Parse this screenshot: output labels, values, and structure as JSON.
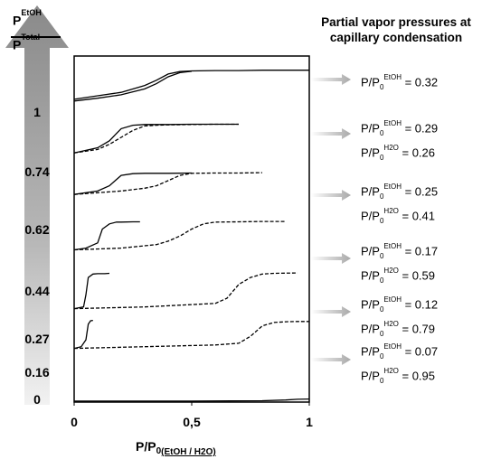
{
  "arrow": {
    "num_base": "P",
    "num_super": "EtOH",
    "den_base": "P",
    "den_super": "Total"
  },
  "side_labels": [
    "1",
    "0.74",
    "0.62",
    "0.44",
    "0.27",
    "0.16",
    "0"
  ],
  "legend_title": [
    "Partial vapor pressures at",
    "capillary condensation"
  ],
  "annotations": [
    {
      "lines": [
        {
          "prefix": "P/P",
          "sub": "0",
          "sup": "EtOH",
          "value": " = 0.32"
        }
      ]
    },
    {
      "lines": [
        {
          "prefix": "P/P",
          "sub": "0",
          "sup": "EtOH",
          "value": " = 0.29"
        },
        {
          "prefix": "P/P",
          "sub": "0",
          "sup": "H2O",
          "value": " = 0.26"
        }
      ]
    },
    {
      "lines": [
        {
          "prefix": "P/P",
          "sub": "0",
          "sup": "EtOH",
          "value": " = 0.25"
        },
        {
          "prefix": "P/P",
          "sub": "0",
          "sup": "H2O",
          "value": " = 0.41"
        }
      ]
    },
    {
      "lines": [
        {
          "prefix": "P/P",
          "sub": "0",
          "sup": "EtOH",
          "value": " = 0.17"
        },
        {
          "prefix": "P/P",
          "sub": "0",
          "sup": "H2O",
          "value": " = 0.59"
        }
      ]
    },
    {
      "lines": [
        {
          "prefix": "P/P",
          "sub": "0",
          "sup": "EtOH",
          "value": " = 0.12"
        },
        {
          "prefix": "P/P",
          "sub": "0",
          "sup": "H2O",
          "value": " = 0.79"
        }
      ]
    },
    {
      "lines": [
        {
          "prefix": "P/P",
          "sub": "0",
          "sup": "EtOH",
          "value": " = 0.07"
        },
        {
          "prefix": "P/P",
          "sub": "0",
          "sup": "H2O",
          "value": " = 0.95"
        }
      ]
    }
  ],
  "chart_data": {
    "type": "line",
    "title": "",
    "xlabel": "P/P0(EtOH / H2O)",
    "xlabel_base": "P/P",
    "xlabel_sub": "0",
    "xlabel_sub2": "(EtOH / H2O)",
    "ylabel": "",
    "xlim": [
      0,
      1
    ],
    "ylim": [
      0,
      1
    ],
    "xticks": [
      0,
      0.5,
      1
    ],
    "xtick_labels": [
      "0",
      "0,5",
      "1"
    ],
    "grid": false,
    "series": [
      {
        "ratio": "1",
        "style": "solid",
        "x": [
          0,
          0.1,
          0.2,
          0.3,
          0.35,
          0.4,
          0.45,
          0.5,
          0.6,
          0.7,
          0.8,
          0.9,
          1.0
        ],
        "y": [
          0.875,
          0.885,
          0.895,
          0.915,
          0.93,
          0.948,
          0.955,
          0.957,
          0.958,
          0.958,
          0.959,
          0.959,
          0.959
        ]
      },
      {
        "ratio": "1",
        "style": "solid",
        "x": [
          0,
          0.1,
          0.2,
          0.3,
          0.35,
          0.4,
          0.45,
          0.5
        ],
        "y": [
          0.87,
          0.878,
          0.888,
          0.905,
          0.92,
          0.94,
          0.952,
          0.956
        ]
      },
      {
        "ratio": "0.74",
        "style": "solid",
        "x": [
          0,
          0.1,
          0.15,
          0.2,
          0.25,
          0.3,
          0.4,
          0.5,
          0.6,
          0.7
        ],
        "y": [
          0.72,
          0.735,
          0.755,
          0.79,
          0.8,
          0.802,
          0.802,
          0.803,
          0.803,
          0.803
        ]
      },
      {
        "ratio": "0.74",
        "style": "dashed",
        "x": [
          0,
          0.1,
          0.15,
          0.2,
          0.25,
          0.3,
          0.35,
          0.4,
          0.5,
          0.6,
          0.7
        ],
        "y": [
          0.72,
          0.73,
          0.745,
          0.765,
          0.785,
          0.798,
          0.8,
          0.801,
          0.802,
          0.803,
          0.803
        ]
      },
      {
        "ratio": "0.62",
        "style": "solid",
        "x": [
          0,
          0.1,
          0.15,
          0.2,
          0.25,
          0.3,
          0.4,
          0.5
        ],
        "y": [
          0.6,
          0.61,
          0.625,
          0.655,
          0.66,
          0.661,
          0.661,
          0.662
        ]
      },
      {
        "ratio": "0.62",
        "style": "dashed",
        "x": [
          0,
          0.1,
          0.2,
          0.3,
          0.35,
          0.4,
          0.45,
          0.5,
          0.6,
          0.7,
          0.8
        ],
        "y": [
          0.6,
          0.605,
          0.61,
          0.618,
          0.625,
          0.64,
          0.655,
          0.661,
          0.662,
          0.662,
          0.663
        ]
      },
      {
        "ratio": "0.44",
        "style": "solid",
        "x": [
          0,
          0.05,
          0.1,
          0.12,
          0.15,
          0.18,
          0.2,
          0.25,
          0.28
        ],
        "y": [
          0.44,
          0.445,
          0.46,
          0.5,
          0.515,
          0.52,
          0.52,
          0.521,
          0.521
        ]
      },
      {
        "ratio": "0.44",
        "style": "dashed",
        "x": [
          0,
          0.2,
          0.35,
          0.4,
          0.45,
          0.5,
          0.55,
          0.6,
          0.7,
          0.8,
          0.9
        ],
        "y": [
          0.44,
          0.445,
          0.455,
          0.465,
          0.48,
          0.5,
          0.515,
          0.52,
          0.521,
          0.522,
          0.522
        ]
      },
      {
        "ratio": "0.27",
        "style": "solid",
        "x": [
          0,
          0.04,
          0.05,
          0.06,
          0.08,
          0.1,
          0.13,
          0.15
        ],
        "y": [
          0.27,
          0.275,
          0.31,
          0.36,
          0.37,
          0.371,
          0.371,
          0.372
        ]
      },
      {
        "ratio": "0.27",
        "style": "dashed",
        "x": [
          0,
          0.3,
          0.6,
          0.65,
          0.7,
          0.75,
          0.8,
          0.85,
          0.95
        ],
        "y": [
          0.27,
          0.275,
          0.285,
          0.3,
          0.34,
          0.36,
          0.37,
          0.372,
          0.373
        ]
      },
      {
        "ratio": "0.16",
        "style": "solid",
        "x": [
          0,
          0.03,
          0.05,
          0.06,
          0.07,
          0.08
        ],
        "y": [
          0.155,
          0.16,
          0.18,
          0.225,
          0.235,
          0.236
        ]
      },
      {
        "ratio": "0.16",
        "style": "dashed",
        "x": [
          0,
          0.3,
          0.6,
          0.7,
          0.75,
          0.8,
          0.85,
          0.9,
          0.95,
          0.98,
          1.0
        ],
        "y": [
          0.155,
          0.16,
          0.165,
          0.17,
          0.19,
          0.22,
          0.23,
          0.232,
          0.233,
          0.233,
          0.233
        ]
      },
      {
        "ratio": "0",
        "style": "solid",
        "x": [
          0,
          0.5,
          0.8,
          0.9,
          0.95,
          1.0
        ],
        "y": [
          0.003,
          0.003,
          0.004,
          0.006,
          0.008,
          0.009
        ]
      }
    ]
  }
}
